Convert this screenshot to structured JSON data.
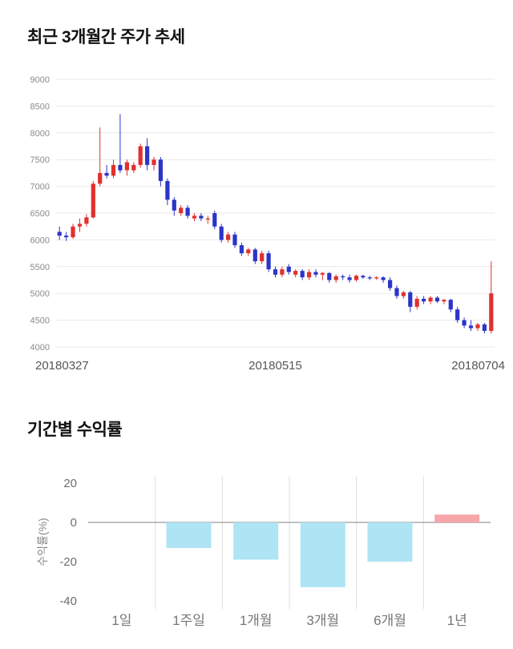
{
  "price_chart": {
    "title": "최근 3개월간 주가 추세"
  },
  "returns_chart": {
    "title": "기간별 수익률"
  },
  "chart_data": [
    {
      "type": "candlestick",
      "title": "최근 3개월간 주가 추세",
      "x_tick_labels": [
        "20180327",
        "20180515",
        "20180704"
      ],
      "ylim": [
        4000,
        9000
      ],
      "y_ticks": [
        4000,
        4500,
        5000,
        5500,
        6000,
        6500,
        7000,
        7500,
        8000,
        8500,
        9000
      ],
      "up_color": "#e0312d",
      "down_color": "#2b35c8",
      "grid_color": "#e9e9e9",
      "candles": [
        [
          6150,
          6250,
          6000,
          6080
        ],
        [
          6080,
          6150,
          5980,
          6050
        ],
        [
          6050,
          6300,
          6020,
          6250
        ],
        [
          6250,
          6400,
          6150,
          6300
        ],
        [
          6300,
          6480,
          6250,
          6420
        ],
        [
          6420,
          7100,
          6400,
          7050
        ],
        [
          7050,
          8100,
          7000,
          7250
        ],
        [
          7250,
          7400,
          7150,
          7200
        ],
        [
          7200,
          7500,
          7150,
          7400
        ],
        [
          7400,
          8350,
          7250,
          7300
        ],
        [
          7300,
          7500,
          7200,
          7450
        ],
        [
          7300,
          7450,
          7250,
          7400
        ],
        [
          7400,
          7800,
          7350,
          7750
        ],
        [
          7750,
          7900,
          7300,
          7400
        ],
        [
          7400,
          7550,
          7300,
          7500
        ],
        [
          7500,
          7550,
          7000,
          7100
        ],
        [
          7100,
          7150,
          6650,
          6750
        ],
        [
          6750,
          6800,
          6450,
          6550
        ],
        [
          6500,
          6650,
          6450,
          6600
        ],
        [
          6600,
          6650,
          6400,
          6450
        ],
        [
          6400,
          6500,
          6350,
          6450
        ],
        [
          6450,
          6500,
          6350,
          6400
        ],
        [
          6400,
          6450,
          6300,
          6400
        ],
        [
          6500,
          6550,
          6200,
          6250
        ],
        [
          6250,
          6300,
          5950,
          6000
        ],
        [
          6000,
          6150,
          5950,
          6100
        ],
        [
          6100,
          6150,
          5850,
          5900
        ],
        [
          5900,
          5950,
          5700,
          5750
        ],
        [
          5750,
          5850,
          5700,
          5820
        ],
        [
          5820,
          5850,
          5550,
          5600
        ],
        [
          5600,
          5800,
          5550,
          5750
        ],
        [
          5750,
          5800,
          5400,
          5450
        ],
        [
          5450,
          5500,
          5300,
          5350
        ],
        [
          5350,
          5500,
          5300,
          5450
        ],
        [
          5500,
          5550,
          5350,
          5400
        ],
        [
          5350,
          5450,
          5300,
          5420
        ],
        [
          5420,
          5450,
          5250,
          5300
        ],
        [
          5300,
          5450,
          5250,
          5400
        ],
        [
          5400,
          5450,
          5300,
          5350
        ],
        [
          5350,
          5400,
          5250,
          5380
        ],
        [
          5380,
          5400,
          5200,
          5250
        ],
        [
          5250,
          5350,
          5200,
          5320
        ],
        [
          5320,
          5350,
          5250,
          5300
        ],
        [
          5300,
          5350,
          5200,
          5250
        ],
        [
          5250,
          5350,
          5220,
          5330
        ],
        [
          5330,
          5350,
          5270,
          5300
        ],
        [
          5300,
          5330,
          5250,
          5280
        ],
        [
          5280,
          5320,
          5250,
          5300
        ],
        [
          5300,
          5320,
          5200,
          5250
        ],
        [
          5250,
          5300,
          5050,
          5100
        ],
        [
          5100,
          5150,
          4900,
          4950
        ],
        [
          4950,
          5050,
          4900,
          5020
        ],
        [
          5020,
          5050,
          4650,
          4750
        ],
        [
          4750,
          4950,
          4700,
          4900
        ],
        [
          4900,
          4950,
          4800,
          4850
        ],
        [
          4850,
          4950,
          4800,
          4920
        ],
        [
          4920,
          4950,
          4820,
          4850
        ],
        [
          4850,
          4900,
          4800,
          4880
        ],
        [
          4880,
          4900,
          4650,
          4700
        ],
        [
          4700,
          4750,
          4450,
          4500
        ],
        [
          4500,
          4550,
          4350,
          4400
        ],
        [
          4400,
          4500,
          4300,
          4350
        ],
        [
          4350,
          4450,
          4300,
          4420
        ],
        [
          4420,
          4450,
          4250,
          4300
        ],
        [
          4300,
          5600,
          4250,
          5000
        ]
      ]
    },
    {
      "type": "bar",
      "title": "기간별 수익률",
      "ylabel": "수익률(%)",
      "categories": [
        "1일",
        "1주일",
        "1개월",
        "3개월",
        "6개월",
        "1년"
      ],
      "values": [
        0,
        -13,
        -19,
        -33,
        -20,
        4
      ],
      "colors": [
        "#aee4f4",
        "#aee4f4",
        "#aee4f4",
        "#aee4f4",
        "#aee4f4",
        "#f7a6aa"
      ],
      "ylim": [
        -40,
        20
      ],
      "y_ticks": [
        20,
        0,
        -20,
        -40
      ],
      "grid_color": "#dedede",
      "zero_line_color": "#9a9a9a"
    }
  ]
}
